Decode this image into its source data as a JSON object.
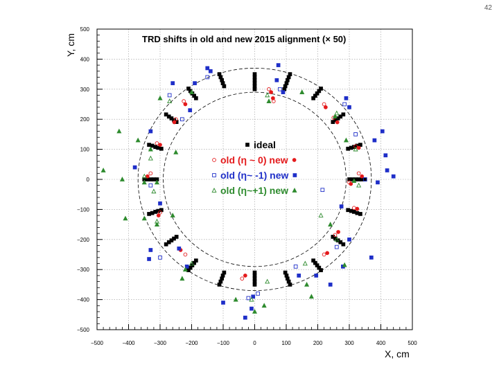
{
  "page": {
    "number": "42"
  },
  "chart_data": {
    "type": "scatter",
    "title": "TRD shifts in old and new 2015 alignment (× 50)",
    "xlabel": "X, cm",
    "ylabel": "Y, cm",
    "xlim": [
      -500,
      500
    ],
    "ylim": [
      -500,
      500
    ],
    "x_ticks": [
      "−500",
      "−400",
      "−300",
      "−200",
      "−100",
      "0",
      "100",
      "200",
      "300",
      "400",
      "500"
    ],
    "y_ticks": [
      "500",
      "400",
      "300",
      "200",
      "100",
      "0",
      "−100",
      "−200",
      "−300",
      "−400",
      "−500"
    ],
    "grid": true,
    "reference_circles_radius": [
      290,
      370
    ],
    "legend_position": "center",
    "legend": [
      {
        "text": "ideal",
        "color": "#000000",
        "marker": "filled-square"
      },
      {
        "text": "old (η ~ 0) new",
        "color": "#e41a1c",
        "marker": "open-circle / filled-circle"
      },
      {
        "text": "old (η~ -1) new",
        "color": "#1f2fc8",
        "marker": "open-square / filled-square"
      },
      {
        "text": "old (η~+1) new",
        "color": "#2e8b2e",
        "marker": "open-triangle / filled-triangle"
      }
    ],
    "series": [
      {
        "name": "ideal",
        "color": "#000000",
        "points": [
          [
            0,
            350
          ],
          [
            0,
            340
          ],
          [
            0,
            330
          ],
          [
            0,
            320
          ],
          [
            0,
            310
          ],
          [
            0,
            300
          ],
          [
            112,
            350
          ],
          [
            108,
            340
          ],
          [
            104,
            330
          ],
          [
            101,
            320
          ],
          [
            97,
            310
          ],
          [
            94,
            300
          ],
          [
            210,
            302
          ],
          [
            204,
            294
          ],
          [
            198,
            286
          ],
          [
            192,
            278
          ],
          [
            186,
            270
          ],
          [
            281,
            216
          ],
          [
            272,
            209
          ],
          [
            264,
            203
          ],
          [
            256,
            197
          ],
          [
            248,
            191
          ],
          [
            335,
            115
          ],
          [
            325,
            112
          ],
          [
            315,
            108
          ],
          [
            306,
            105
          ],
          [
            296,
            102
          ],
          [
            350,
            0
          ],
          [
            340,
            0
          ],
          [
            330,
            0
          ],
          [
            320,
            0
          ],
          [
            310,
            0
          ],
          [
            300,
            0
          ],
          [
            335,
            -115
          ],
          [
            325,
            -112
          ],
          [
            315,
            -108
          ],
          [
            306,
            -105
          ],
          [
            296,
            -102
          ],
          [
            281,
            -216
          ],
          [
            272,
            -209
          ],
          [
            264,
            -203
          ],
          [
            256,
            -197
          ],
          [
            248,
            -191
          ],
          [
            210,
            -302
          ],
          [
            204,
            -294
          ],
          [
            198,
            -286
          ],
          [
            192,
            -278
          ],
          [
            186,
            -270
          ],
          [
            112,
            -350
          ],
          [
            108,
            -340
          ],
          [
            104,
            -330
          ],
          [
            101,
            -320
          ],
          [
            97,
            -310
          ],
          [
            0,
            -350
          ],
          [
            0,
            -340
          ],
          [
            0,
            -330
          ],
          [
            0,
            -320
          ],
          [
            0,
            -310
          ],
          [
            -112,
            -350
          ],
          [
            -108,
            -340
          ],
          [
            -104,
            -330
          ],
          [
            -101,
            -320
          ],
          [
            -97,
            -310
          ],
          [
            -210,
            -302
          ],
          [
            -204,
            -294
          ],
          [
            -198,
            -286
          ],
          [
            -192,
            -278
          ],
          [
            -186,
            -270
          ],
          [
            -281,
            -216
          ],
          [
            -272,
            -209
          ],
          [
            -264,
            -203
          ],
          [
            -256,
            -197
          ],
          [
            -248,
            -191
          ],
          [
            -335,
            -115
          ],
          [
            -325,
            -112
          ],
          [
            -315,
            -108
          ],
          [
            -306,
            -105
          ],
          [
            -296,
            -102
          ],
          [
            -350,
            0
          ],
          [
            -340,
            0
          ],
          [
            -330,
            0
          ],
          [
            -320,
            0
          ],
          [
            -310,
            0
          ],
          [
            -335,
            115
          ],
          [
            -325,
            112
          ],
          [
            -315,
            108
          ],
          [
            -306,
            105
          ],
          [
            -296,
            102
          ],
          [
            -281,
            216
          ],
          [
            -272,
            209
          ],
          [
            -264,
            203
          ],
          [
            -256,
            197
          ],
          [
            -248,
            191
          ],
          [
            -210,
            302
          ],
          [
            -204,
            294
          ],
          [
            -198,
            286
          ],
          [
            -192,
            278
          ],
          [
            -186,
            270
          ],
          [
            -112,
            350
          ],
          [
            -108,
            340
          ],
          [
            -104,
            330
          ],
          [
            -101,
            320
          ],
          [
            -97,
            310
          ]
        ]
      },
      {
        "name": "old (η ~ 0)",
        "color": "#e41a1c",
        "points": [
          [
            45,
            300
          ],
          [
            60,
            260
          ],
          [
            220,
            250
          ],
          [
            250,
            205
          ],
          [
            320,
            110
          ],
          [
            330,
            20
          ],
          [
            300,
            -10
          ],
          [
            315,
            -95
          ],
          [
            255,
            -185
          ],
          [
            220,
            -250
          ],
          [
            -40,
            -330
          ],
          [
            -220,
            -250
          ],
          [
            -300,
            -110
          ],
          [
            -330,
            20
          ],
          [
            -310,
            120
          ],
          [
            -250,
            200
          ],
          [
            -225,
            260
          ]
        ]
      },
      {
        "name": "new (η ~ 0)",
        "color": "#e41a1c",
        "points": [
          [
            52,
            290
          ],
          [
            58,
            270
          ],
          [
            225,
            240
          ],
          [
            262,
            190
          ],
          [
            330,
            105
          ],
          [
            340,
            10
          ],
          [
            305,
            -15
          ],
          [
            325,
            -98
          ],
          [
            265,
            -175
          ],
          [
            230,
            -245
          ],
          [
            -30,
            -320
          ],
          [
            -235,
            -235
          ],
          [
            -305,
            -120
          ],
          [
            -340,
            10
          ],
          [
            -300,
            115
          ],
          [
            -255,
            190
          ],
          [
            -220,
            250
          ]
        ]
      },
      {
        "name": "old (η~ -1)",
        "color": "#1f2fc8",
        "points": [
          [
            80,
            300
          ],
          [
            285,
            250
          ],
          [
            320,
            150
          ],
          [
            350,
            0
          ],
          [
            215,
            -35
          ],
          [
            260,
            -225
          ],
          [
            130,
            -290
          ],
          [
            10,
            -380
          ],
          [
            -20,
            -395
          ],
          [
            -300,
            -260
          ],
          [
            -330,
            -20
          ],
          [
            -230,
            200
          ],
          [
            -270,
            280
          ],
          [
            -150,
            340
          ]
        ]
      },
      {
        "name": "new (η~ -1)",
        "color": "#1f2fc8",
        "points": [
          [
            90,
            290
          ],
          [
            70,
            330
          ],
          [
            75,
            380
          ],
          [
            290,
            270
          ],
          [
            300,
            240
          ],
          [
            405,
            160
          ],
          [
            380,
            130
          ],
          [
            415,
            80
          ],
          [
            420,
            30
          ],
          [
            440,
            10
          ],
          [
            390,
            -10
          ],
          [
            275,
            -90
          ],
          [
            300,
            -200
          ],
          [
            370,
            -260
          ],
          [
            280,
            -290
          ],
          [
            240,
            -350
          ],
          [
            195,
            -320
          ],
          [
            140,
            -320
          ],
          [
            -10,
            -430
          ],
          [
            -30,
            -460
          ],
          [
            -5,
            -390
          ],
          [
            -100,
            -410
          ],
          [
            -215,
            -290
          ],
          [
            -240,
            -230
          ],
          [
            -335,
            -265
          ],
          [
            -330,
            -235
          ],
          [
            -300,
            -80
          ],
          [
            -380,
            40
          ],
          [
            -330,
            160
          ],
          [
            -260,
            320
          ],
          [
            -190,
            320
          ],
          [
            -140,
            360
          ],
          [
            -150,
            370
          ],
          [
            -205,
            230
          ]
        ]
      },
      {
        "name": "old (η~+1)",
        "color": "#2e8b2e",
        "points": [
          [
            40,
            280
          ],
          [
            260,
            220
          ],
          [
            320,
            100
          ],
          [
            330,
            -20
          ],
          [
            210,
            -120
          ],
          [
            260,
            -200
          ],
          [
            160,
            -280
          ],
          [
            40,
            -340
          ],
          [
            -10,
            -400
          ],
          [
            -200,
            -280
          ],
          [
            -310,
            -140
          ],
          [
            -350,
            10
          ],
          [
            -320,
            -40
          ],
          [
            -330,
            70
          ],
          [
            -270,
            260
          ]
        ]
      },
      {
        "name": "new (η~+1)",
        "color": "#2e8b2e",
        "points": [
          [
            45,
            260
          ],
          [
            150,
            290
          ],
          [
            255,
            210
          ],
          [
            290,
            130
          ],
          [
            315,
            -5
          ],
          [
            240,
            -150
          ],
          [
            285,
            -285
          ],
          [
            165,
            -350
          ],
          [
            180,
            -390
          ],
          [
            0,
            -440
          ],
          [
            30,
            -420
          ],
          [
            -60,
            -400
          ],
          [
            -220,
            -300
          ],
          [
            -230,
            -330
          ],
          [
            -260,
            -120
          ],
          [
            -350,
            -130
          ],
          [
            -410,
            -130
          ],
          [
            -310,
            -150
          ],
          [
            -420,
            0
          ],
          [
            -480,
            30
          ],
          [
            -350,
            -10
          ],
          [
            -310,
            -10
          ],
          [
            -430,
            160
          ],
          [
            -370,
            130
          ],
          [
            -330,
            100
          ],
          [
            -250,
            90
          ],
          [
            -300,
            270
          ],
          [
            -200,
            290
          ]
        ]
      }
    ]
  }
}
